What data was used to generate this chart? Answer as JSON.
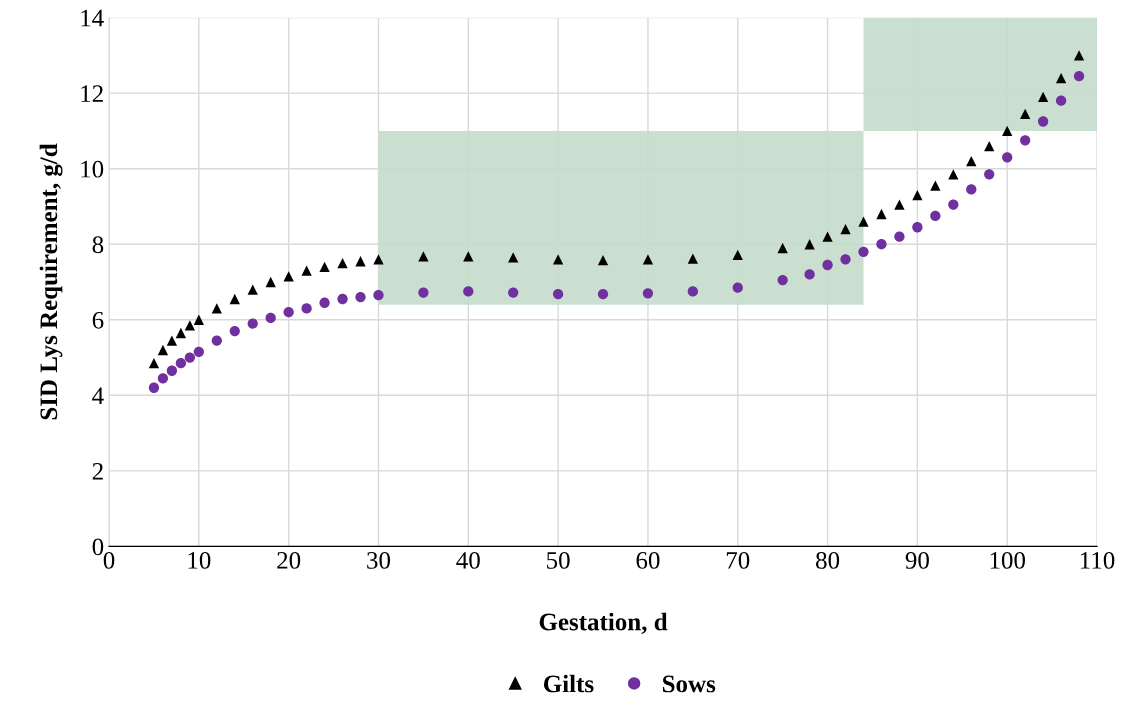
{
  "chart_data": {
    "type": "scatter",
    "xlabel": "Gestation, d",
    "ylabel": "SID Lys Requirement, g/d",
    "xlim": [
      0,
      110
    ],
    "xticks": [
      0,
      10,
      20,
      30,
      40,
      50,
      60,
      70,
      80,
      90,
      100,
      110
    ],
    "ylim": [
      0,
      14
    ],
    "yticks": [
      0,
      2,
      4,
      6,
      8,
      10,
      12,
      14
    ],
    "grid": true,
    "legend": "bottom",
    "series": [
      {
        "type": "area",
        "color": "#c5dccb",
        "x": [
          30,
          84,
          84,
          30
        ],
        "values": [
          6.4,
          6.4,
          11,
          11
        ]
      },
      {
        "type": "area",
        "color": "#c5dccb",
        "x": [
          84,
          110,
          110,
          84
        ],
        "values": [
          11,
          11,
          14,
          14
        ]
      },
      {
        "name": "Gilts",
        "marker": "triangle",
        "color": "#000000",
        "x": [
          5,
          6,
          7,
          8,
          9,
          10,
          12,
          14,
          16,
          18,
          20,
          22,
          24,
          26,
          28,
          30,
          35,
          40,
          45,
          50,
          55,
          60,
          65,
          70,
          75,
          78,
          80,
          82,
          84,
          86,
          88,
          90,
          92,
          94,
          96,
          98,
          100,
          102,
          104,
          106,
          108
        ],
        "values": [
          4.85,
          5.2,
          5.45,
          5.65,
          5.85,
          6.0,
          6.3,
          6.55,
          6.8,
          7.0,
          7.15,
          7.3,
          7.4,
          7.5,
          7.55,
          7.6,
          7.68,
          7.68,
          7.65,
          7.6,
          7.58,
          7.6,
          7.62,
          7.72,
          7.9,
          8.0,
          8.2,
          8.4,
          8.6,
          8.8,
          9.05,
          9.3,
          9.55,
          9.85,
          10.2,
          10.6,
          11.0,
          11.45,
          11.9,
          12.4,
          13.0
        ]
      },
      {
        "name": "Sows",
        "marker": "circle",
        "color": "#7030a0",
        "x": [
          5,
          6,
          7,
          8,
          9,
          10,
          12,
          14,
          16,
          18,
          20,
          22,
          24,
          26,
          28,
          30,
          35,
          40,
          45,
          50,
          55,
          60,
          65,
          70,
          75,
          78,
          80,
          82,
          84,
          86,
          88,
          90,
          92,
          94,
          96,
          98,
          100,
          102,
          104,
          106,
          108
        ],
        "values": [
          4.2,
          4.45,
          4.65,
          4.85,
          5.0,
          5.15,
          5.45,
          5.7,
          5.9,
          6.05,
          6.2,
          6.3,
          6.45,
          6.55,
          6.6,
          6.65,
          6.72,
          6.75,
          6.72,
          6.68,
          6.68,
          6.7,
          6.75,
          6.85,
          7.05,
          7.2,
          7.45,
          7.6,
          7.8,
          8.0,
          8.2,
          8.45,
          8.75,
          9.05,
          9.45,
          9.85,
          10.3,
          10.75,
          11.25,
          11.8,
          12.45
        ]
      }
    ]
  }
}
